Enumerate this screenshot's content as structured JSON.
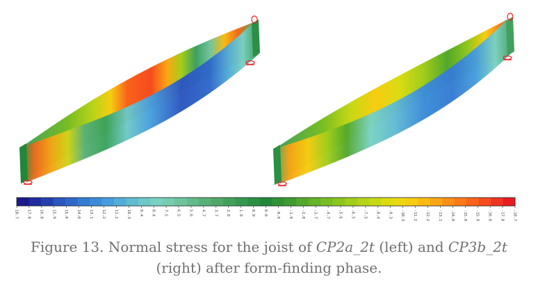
{
  "caption": {
    "prefix": "Figure 13. Normal stress for the joist of ",
    "model_a": "CP2a_2t",
    "middle": " (left) and ",
    "model_b": "CP3b_2t",
    "suffix": " (right) after form-finding phase."
  },
  "legend": {
    "values": [
      "18.7",
      "17.8",
      "16.8",
      "15.9",
      "15.0",
      "14.0",
      "13.1",
      "12.2",
      "11.2",
      "10.3",
      "9.4",
      "8.4",
      "7.5",
      "6.5",
      "5.6",
      "4.7",
      "3.7",
      "2.8",
      "1.9",
      "0.9",
      "0.0",
      "-0.9",
      "-1.9",
      "-2.8",
      "-3.7",
      "-4.7",
      "-5.6",
      "-6.5",
      "-7.5",
      "-8.4",
      "-9.3",
      "-10.3",
      "-11.2",
      "-12.2",
      "-13.1",
      "-14.0",
      "-15.0",
      "-15.9",
      "-16.8",
      "-17.8",
      "-18.7"
    ],
    "colors": [
      "#1a1a8c",
      "#1f2c9c",
      "#2540ae",
      "#2b55bf",
      "#2f68c9",
      "#347bd2",
      "#3b8cd8",
      "#459ddd",
      "#52add8",
      "#60bbd0",
      "#6ec8c8",
      "#79d1c2",
      "#79cbb0",
      "#6fc49e",
      "#63ba8a",
      "#58b078",
      "#4fa86a",
      "#43a05c",
      "#369750",
      "#2b8f44",
      "#22873a",
      "#2f9235",
      "#3f9c30",
      "#52a82b",
      "#65b326",
      "#78bd22",
      "#8cc51e",
      "#a1cd1b",
      "#b5d318",
      "#c8d815",
      "#dbdb12",
      "#ecd811",
      "#f6cd11",
      "#f9bb12",
      "#fba614",
      "#fc9016",
      "#fb7a19",
      "#f9621b",
      "#f54b1e",
      "#f03420",
      "#e81d22"
    ]
  }
}
